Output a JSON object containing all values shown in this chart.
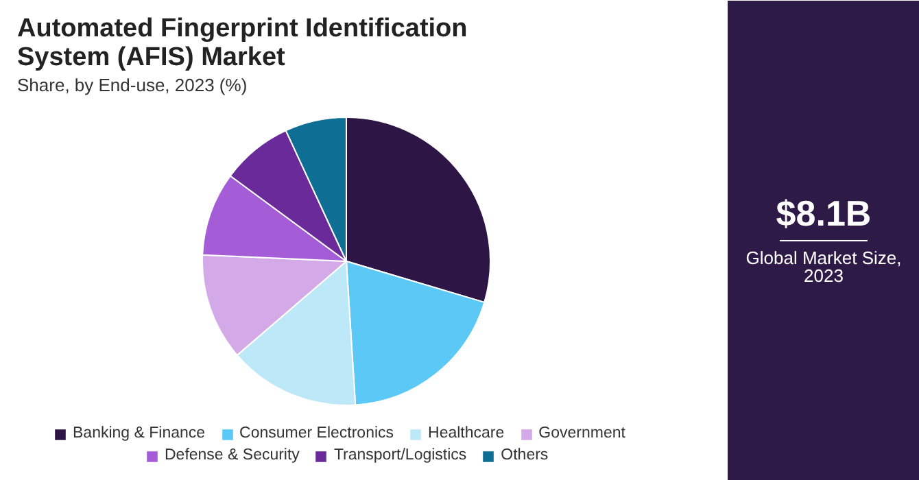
{
  "chart_data": {
    "type": "pie",
    "title": "Automated Fingerprint Identification System (AFIS) Market",
    "subtitle": "Share, by End-use, 2023 (%)",
    "categories": [
      "Banking & Finance",
      "Consumer Electronics",
      "Healthcare",
      "Government",
      "Defense & Security",
      "Transport/Logistics",
      "Others"
    ],
    "values": [
      29.6,
      19.4,
      14.7,
      12,
      9.4,
      8,
      6.9
    ],
    "colors": [
      "#2d1646",
      "#5bc8f5",
      "#bde8f8",
      "#d4a9e8",
      "#a45dd6",
      "#6a2a9a",
      "#0f6e94"
    ],
    "annotations": [
      "$8.1B",
      "Global Market Size, 2023"
    ],
    "legend": "bottom"
  }
}
